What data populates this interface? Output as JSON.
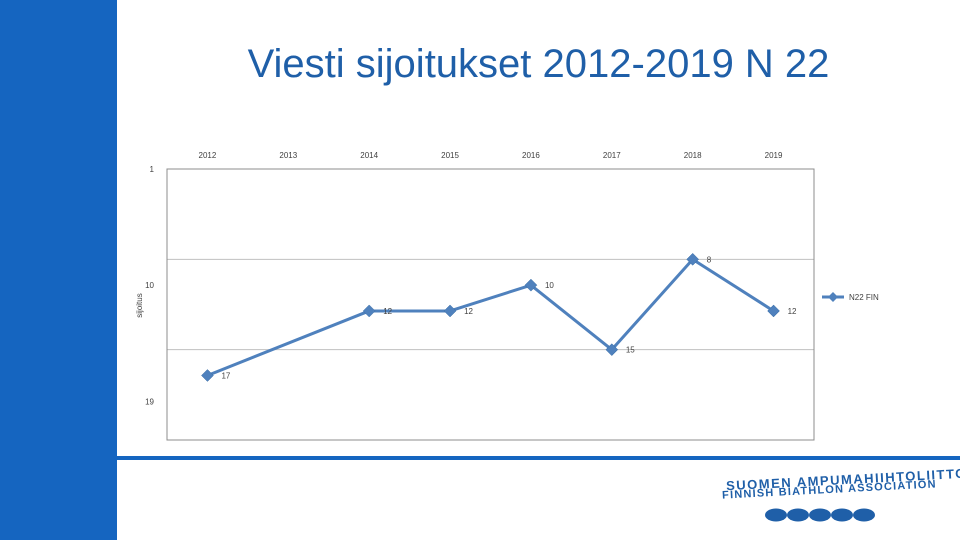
{
  "slide": {
    "title": "Viesti sijoitukset 2012-2019 N 22",
    "accent_color": "#1565c0",
    "title_color": "#1f5fa8"
  },
  "logo": {
    "line1": "SUOMEN AMPUMAHIIHTOLIITTO",
    "line2": "FINNISH BIATHLON ASSOCIATION",
    "dot_count": 5
  },
  "chart_data": {
    "type": "line",
    "categories": [
      "2012",
      "2013",
      "2014",
      "2015",
      "2016",
      "2017",
      "2018",
      "2019"
    ],
    "ylabel": "sijoitus",
    "y_ticks": [
      1,
      10,
      19
    ],
    "ylim": [
      1,
      22
    ],
    "y_reversed": true,
    "x_axis_position": "top",
    "grid": true,
    "legend_position": "right",
    "series": [
      {
        "name": "N22 FIN",
        "color": "#4f81bd",
        "x": [
          0.5,
          2.5,
          3.5,
          4.5,
          5.5,
          6.5,
          7.5
        ],
        "values": [
          17,
          12,
          12,
          10,
          15,
          8,
          12
        ],
        "labels": [
          "17",
          "12",
          "12",
          "10",
          "15",
          "8",
          "12"
        ]
      }
    ]
  }
}
